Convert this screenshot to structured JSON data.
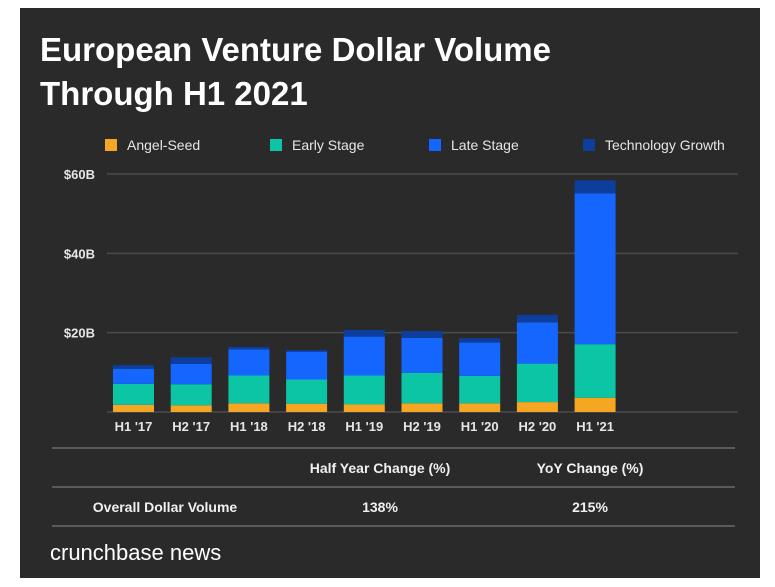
{
  "chart_data": {
    "type": "bar",
    "stacked": true,
    "title": "European Venture Dollar Volume Through H1 2021",
    "categories": [
      "H1 '17",
      "H2 '17",
      "H1 '18",
      "H2 '18",
      "H1 '19",
      "H2 '19",
      "H1 '20",
      "H2 '20",
      "H1 '21"
    ],
    "series": [
      {
        "name": "Angel-Seed",
        "color": "#f5a623",
        "values": [
          1.8,
          1.7,
          2.2,
          2.1,
          1.9,
          2.2,
          2.2,
          2.5,
          3.6
        ]
      },
      {
        "name": "Early Stage",
        "color": "#0bc5a5",
        "values": [
          5.3,
          5.3,
          7.0,
          6.1,
          7.3,
          7.7,
          6.9,
          9.7,
          13.5
        ]
      },
      {
        "name": "Late Stage",
        "color": "#1565ff",
        "values": [
          3.8,
          5.1,
          6.6,
          7.0,
          9.8,
          8.8,
          8.4,
          10.4,
          38.0
        ]
      },
      {
        "name": "Technology Growth",
        "color": "#0d3e9e",
        "values": [
          0.9,
          1.7,
          0.6,
          0.4,
          1.7,
          1.7,
          1.1,
          1.9,
          3.3
        ]
      }
    ],
    "y_ticks": [
      "$20B",
      "$40B",
      "$60B"
    ],
    "y_tick_values": [
      20,
      40,
      60
    ],
    "ylim": [
      0,
      60
    ],
    "units": "billion USD",
    "grid": true,
    "legend": "top"
  },
  "table": {
    "headers": [
      "",
      "Half Year Change (%)",
      "YoY Change (%)"
    ],
    "rows": [
      [
        "Overall Dollar Volume",
        "138%",
        "215%"
      ]
    ]
  },
  "brand": "crunchbase news",
  "background": "#2a2a2a"
}
